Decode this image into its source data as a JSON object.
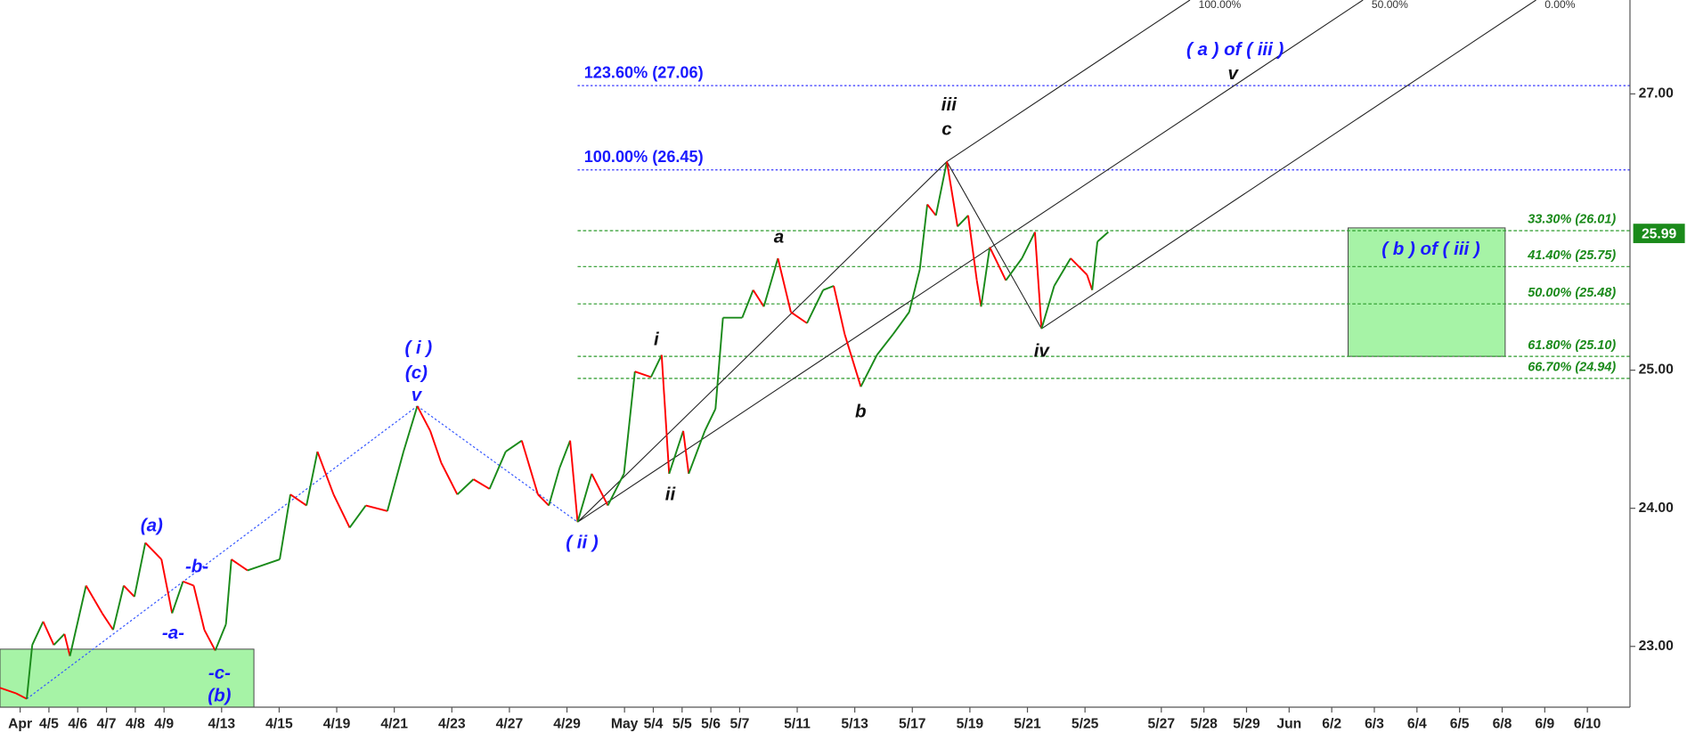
{
  "chart_data": {
    "type": "line",
    "ylim": [
      22.56,
      27.68
    ],
    "yticks": [
      {
        "value": 23,
        "label": "23.00"
      },
      {
        "value": 24,
        "label": "24.00"
      },
      {
        "value": 25,
        "label": "25.00"
      },
      {
        "value": 27,
        "label": "27.00"
      }
    ],
    "xlim": [
      -1.7,
      49
    ],
    "xticks": [
      {
        "value": -1,
        "label": "Apr"
      },
      {
        "value": 0,
        "label": "4/5"
      },
      {
        "value": 1,
        "label": "4/6"
      },
      {
        "value": 2,
        "label": "4/7"
      },
      {
        "value": 3,
        "label": "4/8"
      },
      {
        "value": 4,
        "label": "4/9"
      },
      {
        "value": 6,
        "label": "4/13"
      },
      {
        "value": 8,
        "label": "4/15"
      },
      {
        "value": 10,
        "label": "4/19"
      },
      {
        "value": 12,
        "label": "4/21"
      },
      {
        "value": 14,
        "label": "4/23"
      },
      {
        "value": 16,
        "label": "4/27"
      },
      {
        "value": 18,
        "label": "4/29"
      },
      {
        "value": 20,
        "label": "May"
      },
      {
        "value": 21,
        "label": "5/4"
      },
      {
        "value": 22,
        "label": "5/5"
      },
      {
        "value": 23,
        "label": "5/6"
      },
      {
        "value": 24,
        "label": "5/7"
      },
      {
        "value": 26,
        "label": "5/11"
      },
      {
        "value": 28,
        "label": "5/13"
      },
      {
        "value": 30,
        "label": "5/17"
      },
      {
        "value": 32,
        "label": "5/19"
      },
      {
        "value": 34,
        "label": "5/21"
      },
      {
        "value": 36,
        "label": "5/25"
      },
      {
        "value": 38,
        "label": "5/27"
      },
      {
        "value": 39,
        "label": "5/28"
      },
      {
        "value": 40,
        "label": "5/29"
      },
      {
        "value": 41,
        "label": "Jun"
      },
      {
        "value": 42,
        "label": "6/2"
      },
      {
        "value": 43,
        "label": "6/3"
      },
      {
        "value": 44,
        "label": "6/4"
      },
      {
        "value": 45,
        "label": "6/5"
      },
      {
        "value": 46,
        "label": "6/8"
      },
      {
        "value": 47,
        "label": "6/9"
      },
      {
        "value": 48,
        "label": "6/10"
      }
    ],
    "price": {
      "up_color": "#1a8a1a",
      "down_color": "#ff0000",
      "x": [
        -1.7,
        -1.14,
        -0.77,
        -0.58,
        -0.2,
        0.17,
        0.54,
        0.73,
        1.29,
        1.85,
        2.23,
        2.6,
        2.97,
        3.35,
        3.91,
        4.28,
        4.66,
        5.03,
        5.4,
        5.78,
        6.15,
        6.34,
        6.9,
        8.02,
        8.39,
        8.95,
        9.33,
        9.89,
        10.45,
        11.01,
        11.76,
        12.32,
        12.8,
        13.25,
        13.63,
        14.19,
        14.75,
        15.31,
        15.87,
        16.43,
        16.99,
        17.37,
        17.74,
        18.11,
        18.37,
        18.86,
        19.42,
        19.98,
        20.36,
        20.92,
        21.29,
        21.55,
        22.04,
        22.23,
        22.79,
        23.16,
        23.42,
        24.09,
        24.47,
        24.84,
        25.33,
        25.78,
        26.34,
        26.9,
        27.27,
        27.65,
        28.21,
        28.77,
        29.33,
        29.89,
        30.26,
        30.52,
        30.82,
        31.2,
        31.57,
        31.94,
        32.24,
        32.39,
        32.69,
        33.25,
        33.81,
        34.26,
        34.49,
        34.93,
        35.5,
        36.07,
        36.25,
        36.43,
        36.81
      ],
      "values": [
        22.7,
        22.66,
        22.62,
        23.01,
        23.18,
        23.01,
        23.09,
        22.93,
        23.44,
        23.24,
        23.12,
        23.44,
        23.36,
        23.75,
        23.63,
        23.24,
        23.47,
        23.44,
        23.12,
        22.97,
        23.16,
        23.63,
        23.55,
        23.63,
        24.1,
        24.02,
        24.41,
        24.1,
        23.86,
        24.02,
        23.98,
        24.41,
        24.74,
        24.56,
        24.33,
        24.1,
        24.21,
        24.14,
        24.41,
        24.49,
        24.1,
        24.02,
        24.29,
        24.49,
        23.9,
        24.25,
        24.02,
        24.25,
        24.99,
        24.95,
        25.11,
        24.25,
        24.56,
        24.25,
        24.56,
        24.72,
        25.38,
        25.38,
        25.58,
        25.46,
        25.81,
        25.42,
        25.34,
        25.58,
        25.61,
        25.26,
        24.88,
        25.11,
        25.26,
        25.42,
        25.73,
        26.2,
        26.12,
        26.51,
        26.04,
        26.12,
        25.65,
        25.46,
        25.89,
        25.65,
        25.81,
        26.0,
        25.3,
        25.61,
        25.81,
        25.69,
        25.58,
        25.93,
        26.0
      ]
    },
    "last_price": {
      "value": 25.99,
      "label": "25.99",
      "color": "#1a8a1a"
    },
    "levels": [
      {
        "label": "123.60% (27.06)",
        "value": 27.06,
        "color": "#3333ff"
      },
      {
        "label": "100.00% (26.45)",
        "value": 26.45,
        "color": "#3333ff"
      },
      {
        "label": "33.30% (26.01)",
        "value": 26.01,
        "color": "#2a9a2a"
      },
      {
        "label": "41.40% (25.75)",
        "value": 25.75,
        "color": "#2a9a2a"
      },
      {
        "label": "50.00% (25.48)",
        "value": 25.48,
        "color": "#2a9a2a"
      },
      {
        "label": "61.80% (25.10)",
        "value": 25.1,
        "color": "#2a9a2a"
      },
      {
        "label": "66.70% (24.94)",
        "value": 24.94,
        "color": "#2a9a2a"
      }
    ],
    "zones": [
      {
        "high": 22.98,
        "low": 22.56,
        "color": "#a6f3a6"
      },
      {
        "high": 26.03,
        "low": 25.1,
        "color": "#a6f3a6"
      }
    ],
    "pitchfork_labels": [
      "100.00%",
      "50.00%",
      "0.00%"
    ],
    "annotations": [
      {
        "text": "(a)",
        "color": "#1a1aff"
      },
      {
        "text": "-b-",
        "color": "#1a1aff"
      },
      {
        "text": "-a-",
        "color": "#1a1aff"
      },
      {
        "text": "-c-",
        "color": "#1a1aff"
      },
      {
        "text": "(b)",
        "color": "#1a1aff"
      },
      {
        "text": "( i )",
        "color": "#1a1aff"
      },
      {
        "text": "(c)",
        "color": "#1a1aff"
      },
      {
        "text": "v",
        "color": "#1a1aff"
      },
      {
        "text": "( ii )",
        "color": "#1a1aff"
      },
      {
        "text": "i",
        "color": "#111111"
      },
      {
        "text": "ii",
        "color": "#111111"
      },
      {
        "text": "a",
        "color": "#111111"
      },
      {
        "text": "b",
        "color": "#111111"
      },
      {
        "text": "iii",
        "color": "#111111"
      },
      {
        "text": "c",
        "color": "#111111"
      },
      {
        "text": "iv",
        "color": "#111111"
      },
      {
        "text": "( a ) of ( iii )",
        "color": "#1a1aff"
      },
      {
        "text": "v",
        "color": "#111111"
      },
      {
        "text": "( b ) of ( iii )",
        "color": "#1a1aff"
      }
    ]
  }
}
